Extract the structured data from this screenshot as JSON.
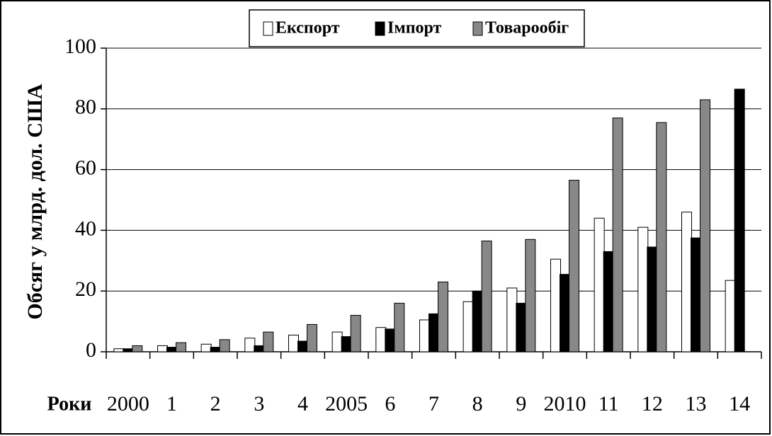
{
  "chart_data": {
    "type": "bar",
    "y_label": "Обсяг у млрд. дол. США",
    "x_label": "Роки",
    "categories": [
      "2000",
      "1",
      "2",
      "3",
      "4",
      "2005",
      "6",
      "7",
      "8",
      "9",
      "2010",
      "11",
      "12",
      "13",
      "14"
    ],
    "series": [
      {
        "name": "Експорт",
        "color": "#ffffff",
        "values": [
          1,
          2,
          2.5,
          4.5,
          5.5,
          6.5,
          8,
          10.5,
          16.5,
          21,
          30.5,
          44,
          41,
          46,
          23.5
        ]
      },
      {
        "name": "Імпорт",
        "color": "#000000",
        "values": [
          1,
          1.5,
          1.5,
          2,
          3.5,
          5,
          7.5,
          12.5,
          20,
          16,
          25.5,
          33,
          34.5,
          37.5,
          86.5
        ]
      },
      {
        "name": "Товарообіг",
        "color": "#888888",
        "values": [
          2,
          3,
          4,
          6.5,
          9,
          12,
          16,
          23,
          36.5,
          37,
          56.5,
          77,
          75.5,
          83,
          null
        ]
      }
    ],
    "ylim": [
      0,
      100
    ],
    "yticks": [
      0,
      20,
      40,
      60,
      80,
      100
    ],
    "grid": true,
    "legend": "top"
  }
}
